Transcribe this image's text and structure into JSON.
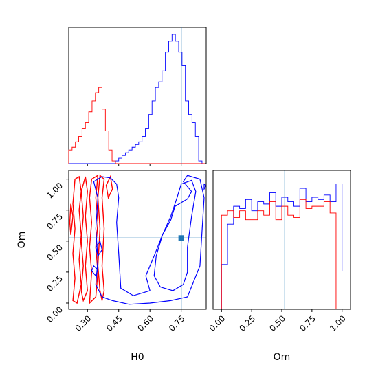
{
  "chart_data": {
    "type": "corner",
    "parameters": [
      "H0",
      "Om"
    ],
    "truth": {
      "H0": 0.75,
      "Om": 0.525
    },
    "colors": {
      "series_a": "#0000ff",
      "series_b": "#ff0000",
      "truth": "#1f77b4"
    },
    "panels": [
      {
        "id": "hist-H0",
        "type": "step-histogram",
        "xlim": [
          0.21,
          0.87
        ],
        "bin_edges": [
          0.21,
          0.226,
          0.242,
          0.258,
          0.274,
          0.29,
          0.306,
          0.322,
          0.338,
          0.354,
          0.37,
          0.386,
          0.402,
          0.418,
          0.434,
          0.45,
          0.466,
          0.482,
          0.498,
          0.514,
          0.53,
          0.546,
          0.562,
          0.578,
          0.594,
          0.61,
          0.626,
          0.642,
          0.658,
          0.674,
          0.69,
          0.706,
          0.722,
          0.738,
          0.754,
          0.77,
          0.786,
          0.802,
          0.818,
          0.834,
          0.85,
          0.866
        ],
        "series": [
          {
            "color": "#0000ff",
            "counts": [
              0,
              0,
              0,
              0,
              0,
              0,
              0,
              0,
              0,
              0,
              0,
              0,
              0,
              0,
              2,
              4,
              6,
              8,
              10,
              12,
              14,
              16,
              20,
              26,
              36,
              46,
              56,
              60,
              68,
              82,
              90,
              95,
              90,
              82,
              72,
              46,
              36,
              30,
              20,
              2,
              0
            ]
          },
          {
            "color": "#ff0000",
            "counts": [
              10,
              12,
              16,
              20,
              26,
              30,
              38,
              46,
              52,
              56,
              40,
              24,
              10,
              2,
              0,
              0,
              0,
              0,
              0,
              0,
              0,
              0,
              0,
              0,
              0,
              0,
              0,
              0,
              0,
              0,
              0,
              0,
              0,
              0,
              0,
              0,
              0,
              0,
              0,
              0,
              0
            ]
          }
        ],
        "xticks": [
          0.3,
          0.45,
          0.6,
          0.75
        ]
      },
      {
        "id": "contour-H0-Om",
        "type": "contour",
        "xlabel": "H0",
        "ylabel": "Om",
        "xlim": [
          0.21,
          0.87
        ],
        "ylim": [
          -0.05,
          1.07
        ],
        "xticks": [
          0.3,
          0.45,
          0.6,
          0.75
        ],
        "yticks": [
          0.0,
          0.25,
          0.5,
          0.75,
          1.0
        ],
        "blue_contours": [
          [
            [
              0.42,
              0.02
            ],
            [
              0.5,
              -0.01
            ],
            [
              0.6,
              0.0
            ],
            [
              0.7,
              0.02
            ],
            [
              0.78,
              0.05
            ],
            [
              0.84,
              0.3
            ],
            [
              0.85,
              0.58
            ],
            [
              0.86,
              0.85
            ],
            [
              0.84,
              1.0
            ],
            [
              0.78,
              1.03
            ],
            [
              0.76,
              0.98
            ],
            [
              0.8,
              0.9
            ],
            [
              0.78,
              0.84
            ],
            [
              0.72,
              0.78
            ],
            [
              0.7,
              0.67
            ],
            [
              0.66,
              0.55
            ],
            [
              0.62,
              0.38
            ],
            [
              0.58,
              0.22
            ],
            [
              0.6,
              0.1
            ],
            [
              0.52,
              0.06
            ],
            [
              0.46,
              0.12
            ],
            [
              0.45,
              0.4
            ],
            [
              0.44,
              0.65
            ],
            [
              0.45,
              0.85
            ],
            [
              0.44,
              0.96
            ],
            [
              0.41,
              1.01
            ],
            [
              0.37,
              1.02
            ],
            [
              0.33,
              0.98
            ],
            [
              0.35,
              0.85
            ],
            [
              0.34,
              0.6
            ],
            [
              0.35,
              0.35
            ],
            [
              0.34,
              0.15
            ],
            [
              0.37,
              0.05
            ],
            [
              0.42,
              0.02
            ]
          ],
          [
            [
              0.71,
              0.1
            ],
            [
              0.76,
              0.15
            ],
            [
              0.78,
              0.25
            ],
            [
              0.78,
              0.45
            ],
            [
              0.8,
              0.7
            ],
            [
              0.82,
              0.9
            ],
            [
              0.8,
              0.99
            ],
            [
              0.75,
              0.96
            ],
            [
              0.73,
              0.85
            ],
            [
              0.7,
              0.7
            ],
            [
              0.66,
              0.55
            ],
            [
              0.63,
              0.38
            ],
            [
              0.62,
              0.22
            ],
            [
              0.65,
              0.13
            ],
            [
              0.71,
              0.1
            ]
          ],
          [
            [
              0.35,
              0.38
            ],
            [
              0.37,
              0.43
            ],
            [
              0.36,
              0.5
            ],
            [
              0.34,
              0.45
            ],
            [
              0.35,
              0.38
            ]
          ],
          [
            [
              0.34,
              0.22
            ],
            [
              0.35,
              0.27
            ],
            [
              0.33,
              0.3
            ],
            [
              0.32,
              0.26
            ],
            [
              0.34,
              0.22
            ]
          ],
          [
            [
              0.86,
              0.92
            ],
            [
              0.87,
              0.95
            ],
            [
              0.86,
              0.96
            ],
            [
              0.86,
              0.92
            ]
          ]
        ],
        "red_contours": [
          [
            [
              0.25,
              0.0
            ],
            [
              0.27,
              0.15
            ],
            [
              0.26,
              0.35
            ],
            [
              0.27,
              0.55
            ],
            [
              0.26,
              0.75
            ],
            [
              0.27,
              0.9
            ],
            [
              0.26,
              1.02
            ],
            [
              0.24,
              1.0
            ],
            [
              0.23,
              0.8
            ],
            [
              0.24,
              0.6
            ],
            [
              0.23,
              0.4
            ],
            [
              0.24,
              0.2
            ],
            [
              0.23,
              0.02
            ],
            [
              0.25,
              0.0
            ]
          ],
          [
            [
              0.28,
              0.02
            ],
            [
              0.3,
              0.1
            ],
            [
              0.29,
              0.3
            ],
            [
              0.3,
              0.5
            ],
            [
              0.29,
              0.7
            ],
            [
              0.3,
              0.9
            ],
            [
              0.29,
              1.02
            ],
            [
              0.27,
              0.9
            ],
            [
              0.28,
              0.7
            ],
            [
              0.27,
              0.5
            ],
            [
              0.28,
              0.3
            ],
            [
              0.27,
              0.1
            ],
            [
              0.28,
              0.02
            ]
          ],
          [
            [
              0.31,
              0.0
            ],
            [
              0.34,
              0.05
            ],
            [
              0.35,
              0.25
            ],
            [
              0.34,
              0.45
            ],
            [
              0.35,
              0.65
            ],
            [
              0.34,
              0.85
            ],
            [
              0.35,
              1.03
            ],
            [
              0.32,
              1.0
            ],
            [
              0.31,
              0.85
            ],
            [
              0.32,
              0.65
            ],
            [
              0.31,
              0.45
            ],
            [
              0.32,
              0.25
            ],
            [
              0.31,
              0.0
            ]
          ],
          [
            [
              0.37,
              0.02
            ],
            [
              0.38,
              0.1
            ],
            [
              0.37,
              0.3
            ],
            [
              0.38,
              0.6
            ],
            [
              0.37,
              0.85
            ],
            [
              0.38,
              1.0
            ],
            [
              0.36,
              1.03
            ],
            [
              0.35,
              0.85
            ],
            [
              0.36,
              0.6
            ],
            [
              0.35,
              0.3
            ],
            [
              0.36,
              0.1
            ],
            [
              0.37,
              0.02
            ]
          ],
          [
            [
              0.4,
              0.85
            ],
            [
              0.42,
              0.92
            ],
            [
              0.41,
              1.02
            ],
            [
              0.39,
              0.95
            ],
            [
              0.4,
              0.85
            ]
          ],
          [
            [
              0.22,
              0.55
            ],
            [
              0.23,
              0.7
            ],
            [
              0.22,
              0.8
            ],
            [
              0.215,
              0.65
            ],
            [
              0.22,
              0.55
            ]
          ]
        ],
        "truth_marker": [
          0.75,
          0.525
        ]
      },
      {
        "id": "hist-Om",
        "type": "step-histogram",
        "xlabel": "Om",
        "xlim": [
          -0.07,
          1.07
        ],
        "bin_edges": [
          -0.05,
          0.0,
          0.05,
          0.1,
          0.15,
          0.2,
          0.25,
          0.3,
          0.35,
          0.4,
          0.45,
          0.5,
          0.55,
          0.6,
          0.65,
          0.7,
          0.75,
          0.8,
          0.85,
          0.9,
          0.95,
          1.0,
          1.05
        ],
        "series": [
          {
            "color": "#0000ff",
            "counts": [
              0,
              20,
              38,
              46,
              45,
              49,
              44,
              48,
              47,
              52,
              46,
              50,
              48,
              46,
              54,
              48,
              50,
              49,
              51,
              48,
              56,
              17
            ]
          },
          {
            "color": "#ff0000",
            "counts": [
              0,
              42,
              44,
              41,
              44,
              40,
              40,
              44,
              42,
              48,
              40,
              46,
              42,
              41,
              49,
              45,
              46,
              46,
              48,
              43,
              0,
              0
            ]
          }
        ],
        "ymax": 62,
        "xticks": [
          0.0,
          0.25,
          0.5,
          0.75,
          1.0
        ]
      }
    ],
    "tick_labels": {
      "x_H0": [
        "0.30",
        "0.45",
        "0.60",
        "0.75"
      ],
      "y_Om": [
        "0.00",
        "0.25",
        "0.50",
        "0.75",
        "1.00"
      ],
      "x_Om": [
        "0.00",
        "0.25",
        "0.50",
        "0.75",
        "1.00"
      ]
    }
  }
}
